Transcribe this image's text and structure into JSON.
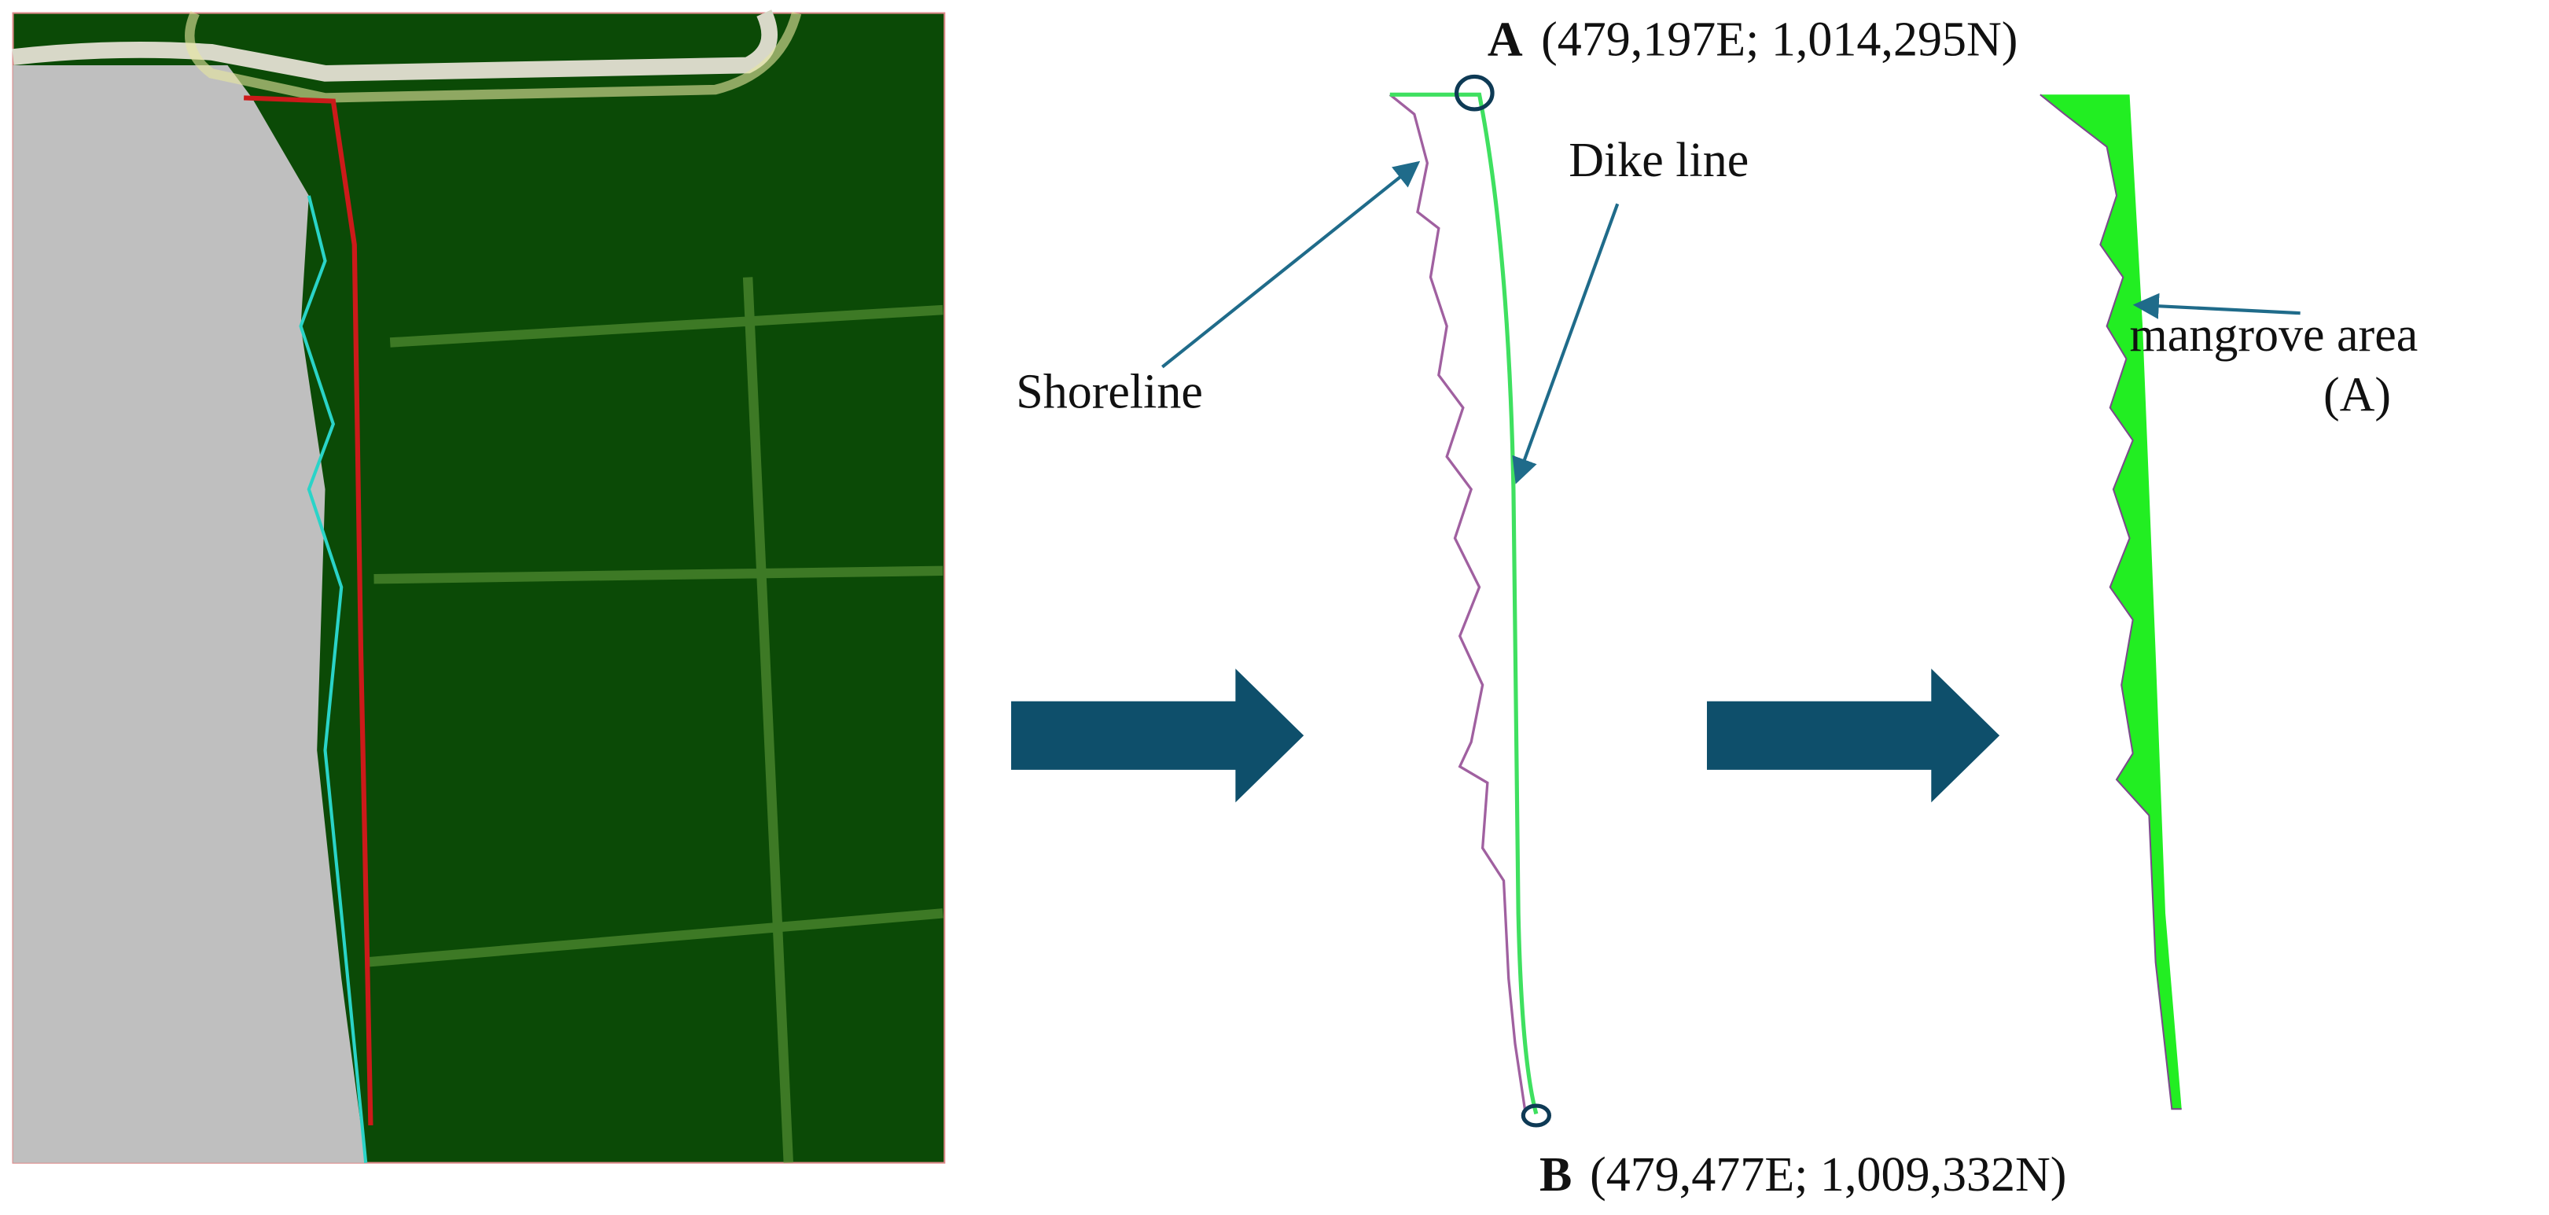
{
  "point_a": {
    "letter": "A",
    "coords": "(479,197E; 1,014,295N)"
  },
  "point_b": {
    "letter": "B",
    "coords": "(479,477E; 1,009,332N)"
  },
  "labels": {
    "dike_line": "Dike line",
    "shoreline": "Shoreline",
    "mangrove_area": "mangrove area",
    "mangrove_id": "(A)"
  }
}
